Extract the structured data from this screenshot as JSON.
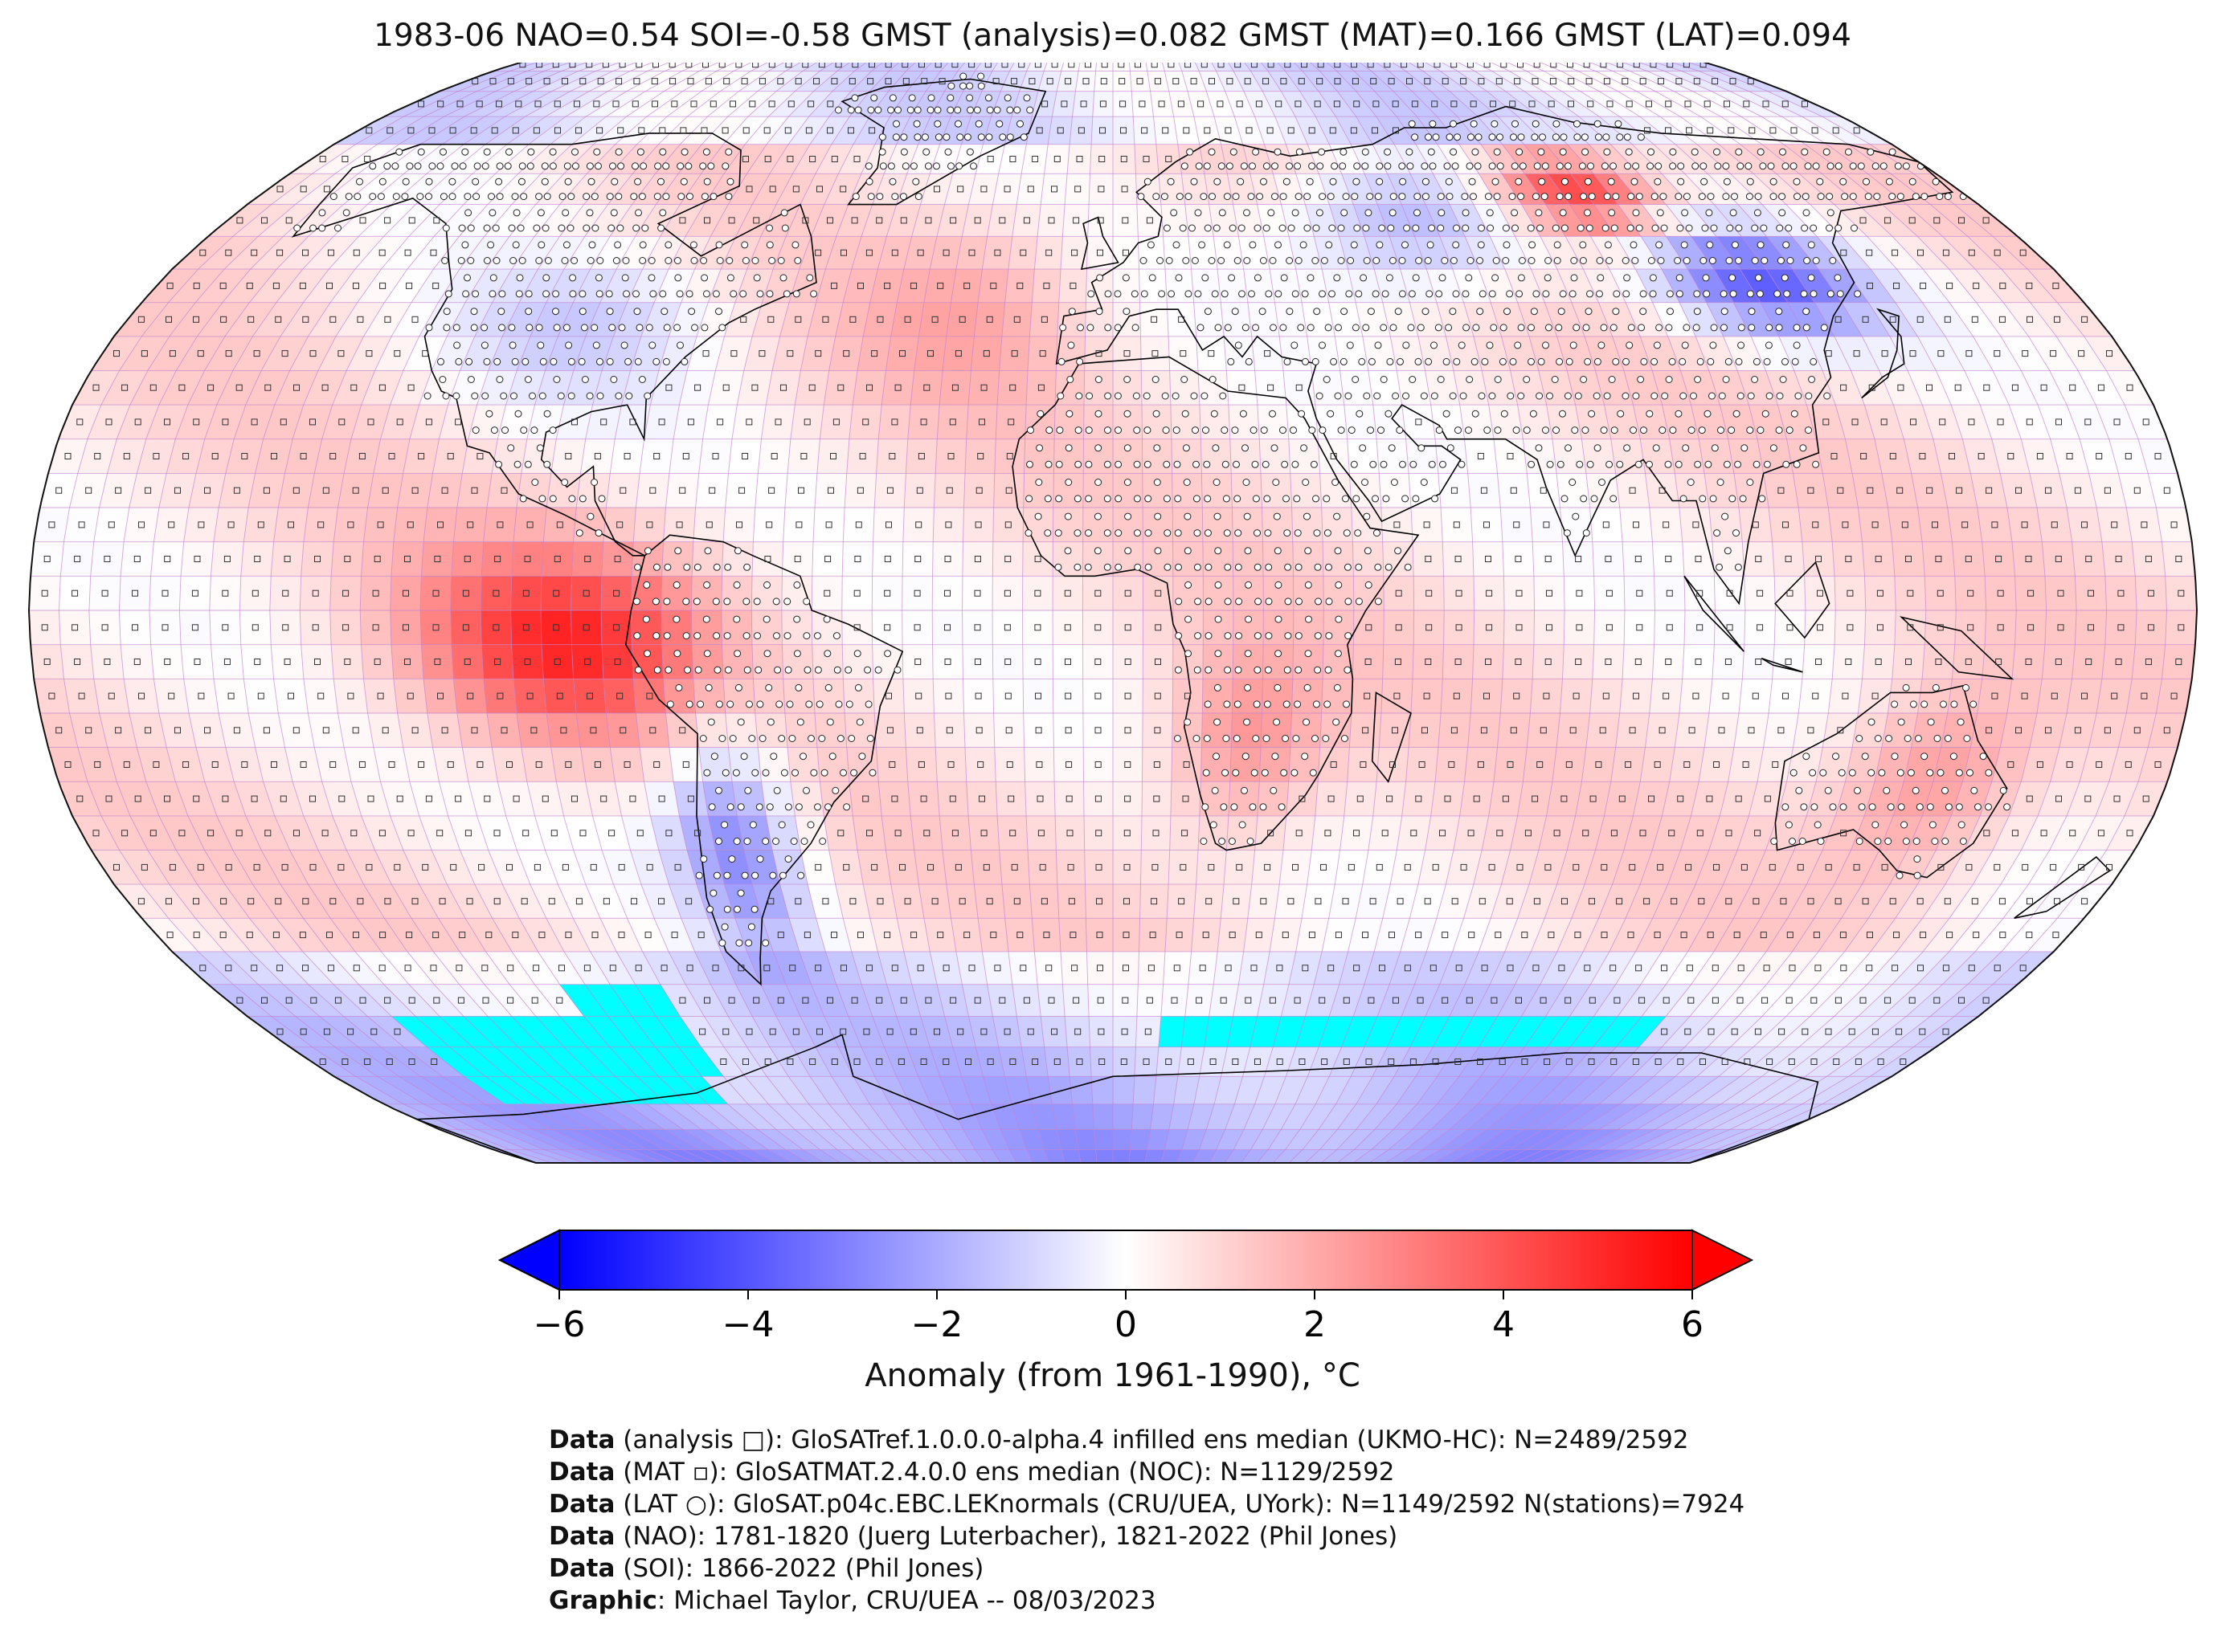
{
  "title": "1983-06 NAO=0.54 SOI=-0.58 GMST (analysis)=0.082 GMST (MAT)=0.166 GMST (LAT)=0.094",
  "colorbar": {
    "label": "Anomaly (from 1961-1990), °C",
    "ticks": [
      "−6",
      "−4",
      "−2",
      "0",
      "2",
      "4",
      "6"
    ],
    "min": -6,
    "max": 6,
    "colormap": "bwr",
    "extend": "both",
    "colors": {
      "low": "#0000ff",
      "mid": "#ffffff",
      "high": "#ff0000",
      "nodata": "#00ffff"
    }
  },
  "map": {
    "projection": "Robinson",
    "grid_resolution_deg": 5,
    "legend_markers": {
      "analysis": "square",
      "MAT": "small-square",
      "LAT": "circle"
    },
    "anomaly_regions": [
      {
        "region": "Tropical Eastern Pacific (Peru coast)",
        "anomaly_c": 4.5
      },
      {
        "region": "East Siberia",
        "anomaly_c": 5.0
      },
      {
        "region": "Eastern Mongolia / NE China",
        "anomaly_c": -4.0
      },
      {
        "region": "Western Siberia",
        "anomaly_c": -3.0
      },
      {
        "region": "Southern South America",
        "anomaly_c": -3.0
      },
      {
        "region": "Eastern Australia",
        "anomaly_c": 2.5
      },
      {
        "region": "Southern Africa",
        "anomaly_c": 2.5
      },
      {
        "region": "Central United States",
        "anomaly_c": -1.5
      },
      {
        "region": "Southern Ocean",
        "anomaly_c": -1.5
      }
    ]
  },
  "credits": [
    {
      "bold": "Data",
      "text": " (analysis □): GloSATref.1.0.0.0-alpha.4 infilled ens median (UKMO-HC): N=2489/2592"
    },
    {
      "bold": "Data",
      "text": " (MAT ▫): GloSATMAT.2.4.0.0 ens median (NOC): N=1129/2592"
    },
    {
      "bold": "Data",
      "text": " (LAT ○): GloSAT.p04c.EBC.LEKnormals (CRU/UEA, UYork): N=1149/2592 N(stations)=7924"
    },
    {
      "bold": "Data",
      "text": " (NAO): 1781-1820 (Juerg Luterbacher), 1821-2022 (Phil Jones)"
    },
    {
      "bold": "Data",
      "text": " (SOI): 1866-2022 (Phil Jones)"
    },
    {
      "bold": "Graphic",
      "text": ": Michael Taylor, CRU/UEA -- 08/03/2023"
    }
  ]
}
